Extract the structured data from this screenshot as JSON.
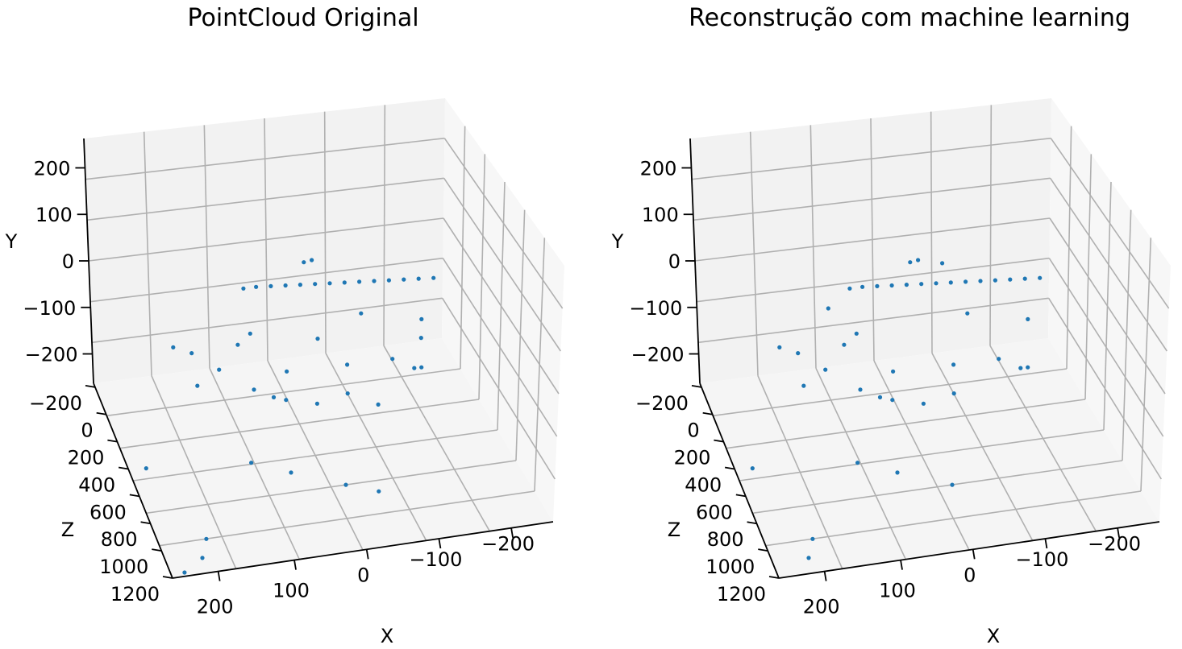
{
  "chart_data": [
    {
      "type": "scatter",
      "title": "PointCloud Original",
      "xlabel": "X",
      "ylabel": "Y",
      "zlabel": "Z",
      "x_ticks": [
        "200",
        "100",
        "0",
        "−100",
        "−200"
      ],
      "y_ticks": [
        "200",
        "100",
        "0",
        "−100",
        "−200"
      ],
      "z_ticks": [
        "−200",
        "0",
        "200",
        "400",
        "600",
        "800",
        "1000",
        "1200"
      ],
      "xlim": [
        -250,
        250
      ],
      "ylim": [
        -250,
        250
      ],
      "zlim": [
        -300,
        1200
      ],
      "grid": true,
      "color": "#1f77b4",
      "points": [
        {
          "x": 48,
          "y": 4,
          "z": 1050
        },
        {
          "x": 30,
          "y": 4,
          "z": 1050
        },
        {
          "x": 10,
          "y": 4,
          "z": 1040
        },
        {
          "x": -10,
          "y": 4,
          "z": 1030
        },
        {
          "x": -30,
          "y": 4,
          "z": 1020
        },
        {
          "x": -50,
          "y": 4,
          "z": 1010
        },
        {
          "x": -70,
          "y": 4,
          "z": 1000
        },
        {
          "x": -90,
          "y": 4,
          "z": 990
        },
        {
          "x": -110,
          "y": 4,
          "z": 980
        },
        {
          "x": -130,
          "y": 4,
          "z": 970
        },
        {
          "x": -150,
          "y": 4,
          "z": 960
        },
        {
          "x": -170,
          "y": 4,
          "z": 950
        },
        {
          "x": -190,
          "y": 4,
          "z": 940
        },
        {
          "x": -210,
          "y": 4,
          "z": 930
        },
        {
          "x": 20,
          "y": 220,
          "z": 400
        },
        {
          "x": 10,
          "y": 225,
          "z": 390
        },
        {
          "x": 150,
          "y": -40,
          "z": 700
        },
        {
          "x": 120,
          "y": -60,
          "z": 600
        },
        {
          "x": 80,
          "y": -90,
          "z": 500
        },
        {
          "x": 40,
          "y": -110,
          "z": 450
        },
        {
          "x": 0,
          "y": -120,
          "z": 420
        },
        {
          "x": -40,
          "y": -100,
          "z": 400
        },
        {
          "x": -80,
          "y": -130,
          "z": 380
        },
        {
          "x": -120,
          "y": -90,
          "z": 600
        },
        {
          "x": -160,
          "y": -150,
          "z": 700
        },
        {
          "x": 100,
          "y": -200,
          "z": 300
        },
        {
          "x": 50,
          "y": -220,
          "z": 250
        },
        {
          "x": -20,
          "y": -250,
          "z": 200
        },
        {
          "x": -60,
          "y": -260,
          "z": 150
        },
        {
          "x": 180,
          "y": -280,
          "z": 50
        },
        {
          "x": 220,
          "y": -300,
          "z": -100
        },
        {
          "x": 200,
          "y": -260,
          "z": -150
        },
        {
          "x": 160,
          "y": -80,
          "z": 900
        },
        {
          "x": 60,
          "y": -40,
          "z": 800
        },
        {
          "x": -30,
          "y": -60,
          "z": 750
        },
        {
          "x": -100,
          "y": -40,
          "z": 850
        },
        {
          "x": -180,
          "y": -60,
          "z": 800
        },
        {
          "x": 250,
          "y": -150,
          "z": 200
        },
        {
          "x": 130,
          "y": -170,
          "z": 850
        },
        {
          "x": 0,
          "y": -180,
          "z": 900
        },
        {
          "x": -90,
          "y": -200,
          "z": 950
        },
        {
          "x": -200,
          "y": -250,
          "z": 1000
        },
        {
          "x": 90,
          "y": -20,
          "z": 650
        },
        {
          "x": -150,
          "y": -20,
          "z": 500
        },
        {
          "x": 40,
          "y": -160,
          "z": 650
        }
      ]
    },
    {
      "type": "scatter",
      "title": "Reconstrução com machine learning",
      "xlabel": "X",
      "ylabel": "Y",
      "zlabel": "Z",
      "x_ticks": [
        "200",
        "100",
        "0",
        "−100",
        "−200"
      ],
      "y_ticks": [
        "200",
        "100",
        "0",
        "−100",
        "−200"
      ],
      "z_ticks": [
        "−200",
        "0",
        "200",
        "400",
        "600",
        "800",
        "1000",
        "1200"
      ],
      "xlim": [
        -250,
        250
      ],
      "ylim": [
        -250,
        250
      ],
      "zlim": [
        -300,
        1200
      ],
      "grid": true,
      "color": "#1f77b4",
      "points": [
        {
          "x": 48,
          "y": 4,
          "z": 1050
        },
        {
          "x": 30,
          "y": 4,
          "z": 1050
        },
        {
          "x": 10,
          "y": 4,
          "z": 1040
        },
        {
          "x": -10,
          "y": 4,
          "z": 1030
        },
        {
          "x": -30,
          "y": 4,
          "z": 1020
        },
        {
          "x": -50,
          "y": 4,
          "z": 1010
        },
        {
          "x": -70,
          "y": 4,
          "z": 1000
        },
        {
          "x": -90,
          "y": 4,
          "z": 990
        },
        {
          "x": -110,
          "y": 4,
          "z": 980
        },
        {
          "x": -130,
          "y": 4,
          "z": 970
        },
        {
          "x": -150,
          "y": 4,
          "z": 960
        },
        {
          "x": -170,
          "y": 4,
          "z": 950
        },
        {
          "x": -190,
          "y": 4,
          "z": 940
        },
        {
          "x": -210,
          "y": 4,
          "z": 930
        },
        {
          "x": 20,
          "y": 220,
          "z": 400
        },
        {
          "x": 10,
          "y": 225,
          "z": 390
        },
        {
          "x": 120,
          "y": 100,
          "z": 550
        },
        {
          "x": -60,
          "y": 110,
          "z": 800
        },
        {
          "x": 150,
          "y": -40,
          "z": 700
        },
        {
          "x": 120,
          "y": -60,
          "z": 600
        },
        {
          "x": 80,
          "y": -90,
          "z": 500
        },
        {
          "x": 40,
          "y": -110,
          "z": 450
        },
        {
          "x": 0,
          "y": -120,
          "z": 420
        },
        {
          "x": -40,
          "y": -100,
          "z": 400
        },
        {
          "x": -120,
          "y": -90,
          "z": 600
        },
        {
          "x": -160,
          "y": -150,
          "z": 700
        },
        {
          "x": 100,
          "y": -200,
          "z": 300
        },
        {
          "x": 50,
          "y": -220,
          "z": 250
        },
        {
          "x": -20,
          "y": -250,
          "z": 200
        },
        {
          "x": 180,
          "y": -280,
          "z": 50
        },
        {
          "x": 200,
          "y": -260,
          "z": -150
        },
        {
          "x": 160,
          "y": -80,
          "z": 900
        },
        {
          "x": 60,
          "y": -40,
          "z": 800
        },
        {
          "x": -100,
          "y": -40,
          "z": 850
        },
        {
          "x": -180,
          "y": -60,
          "z": 800
        },
        {
          "x": 250,
          "y": -150,
          "z": 200
        },
        {
          "x": 130,
          "y": -170,
          "z": 850
        },
        {
          "x": 0,
          "y": -180,
          "z": 900
        },
        {
          "x": -90,
          "y": -200,
          "z": 950
        },
        {
          "x": -200,
          "y": -250,
          "z": 1000
        },
        {
          "x": 90,
          "y": -20,
          "z": 650
        },
        {
          "x": 40,
          "y": -160,
          "z": 650
        }
      ]
    }
  ]
}
